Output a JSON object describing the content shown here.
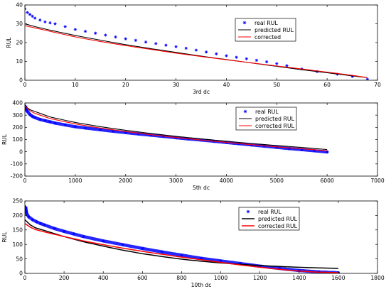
{
  "chart_data": [
    {
      "type": "scatter",
      "xlabel": "3rd dc",
      "ylabel": "RUL",
      "xlim": [
        0,
        70
      ],
      "ylim": [
        0,
        40
      ],
      "xticks": [
        0,
        10,
        20,
        30,
        40,
        50,
        60,
        70
      ],
      "yticks": [
        0,
        10,
        20,
        30,
        40
      ],
      "legend_position": "top-right",
      "series": [
        {
          "name": "real RUL",
          "style": "marker-star",
          "color": "#0000ff",
          "x": [
            0,
            0.5,
            1,
            1.5,
            2,
            3,
            4,
            5,
            6,
            8,
            10,
            12,
            14,
            16,
            18,
            20,
            22,
            24,
            26,
            28,
            30,
            32,
            34,
            36,
            38,
            40,
            42,
            44,
            46,
            48,
            50,
            52,
            55,
            58,
            62,
            65,
            68
          ],
          "y": [
            38,
            36,
            35,
            34,
            33,
            32,
            31,
            30.5,
            30,
            28.5,
            27,
            26,
            25,
            24,
            23,
            22,
            21.2,
            20.3,
            19.5,
            18.6,
            17.8,
            17,
            16,
            15,
            14,
            13,
            12.2,
            11.4,
            10.6,
            9.8,
            8.8,
            7.7,
            6,
            4.6,
            3.2,
            2,
            0.5
          ]
        },
        {
          "name": "predicted RUL",
          "style": "line",
          "color": "#000000",
          "x": [
            0,
            2,
            5,
            10,
            15,
            20,
            25,
            30,
            35,
            40,
            45,
            50,
            55,
            60,
            65,
            68
          ],
          "y": [
            30,
            28.5,
            26.6,
            23.8,
            21.3,
            18.9,
            16.8,
            14.8,
            12.8,
            11.0,
            9.2,
            7.4,
            5.6,
            4.0,
            2.3,
            1.4
          ]
        },
        {
          "name": "corrected",
          "style": "line",
          "color": "#ff0000",
          "x": [
            0,
            2,
            5,
            10,
            15,
            20,
            25,
            30,
            35,
            40,
            45,
            50,
            55,
            60,
            65,
            68
          ],
          "y": [
            29,
            27.8,
            26,
            23,
            20.6,
            18.4,
            16.4,
            14.4,
            12.6,
            10.9,
            9.2,
            7.6,
            6,
            4.3,
            2.6,
            1.4
          ]
        }
      ]
    },
    {
      "type": "scatter",
      "xlabel": "5th dc",
      "ylabel": "RUL",
      "xlim": [
        0,
        7000
      ],
      "ylim": [
        -200,
        400
      ],
      "xticks": [
        0,
        1000,
        2000,
        3000,
        4000,
        5000,
        6000,
        7000
      ],
      "yticks": [
        -200,
        -100,
        0,
        100,
        200,
        300,
        400
      ],
      "legend_position": "top-right",
      "series": [
        {
          "name": "real RUL",
          "style": "dense-marker-star",
          "color": "#0000ff",
          "x": [
            0,
            10,
            25,
            50,
            100,
            150,
            200,
            300,
            400,
            500,
            600,
            800,
            1000,
            1200,
            1500,
            1750,
            2000,
            2250,
            2500,
            2750,
            3000,
            3250,
            3500,
            3750,
            4000,
            4250,
            4500,
            4750,
            5000,
            5250,
            5500,
            5750,
            6000
          ],
          "y": [
            375,
            360,
            345,
            330,
            305,
            290,
            280,
            265,
            255,
            245,
            235,
            220,
            205,
            195,
            180,
            168,
            157,
            146,
            136,
            126,
            115,
            105,
            96,
            86,
            76,
            66,
            56,
            46,
            36,
            26,
            17,
            8,
            -2
          ]
        },
        {
          "name": "predicted RUL",
          "style": "line",
          "color": "#000000",
          "x": [
            0,
            100,
            200,
            500,
            1000,
            1500,
            2000,
            2500,
            3000,
            3500,
            4000,
            4500,
            5000,
            5500,
            6000
          ],
          "y": [
            375,
            345,
            330,
            285,
            240,
            205,
            176,
            150,
            126,
            105,
            86,
            67,
            51,
            35,
            18
          ]
        },
        {
          "name": "corrected RUL",
          "style": "line",
          "color": "#ff0000",
          "x": [
            0,
            100,
            200,
            500,
            1000,
            1500,
            2000,
            2500,
            3000,
            3500,
            4000,
            4500,
            5000,
            5500,
            6000
          ],
          "y": [
            375,
            335,
            315,
            272,
            228,
            194,
            166,
            140,
            117,
            96,
            77,
            58,
            40,
            24,
            8
          ]
        }
      ]
    },
    {
      "type": "scatter",
      "xlabel": "10th dc",
      "ylabel": "RUL",
      "xlim": [
        0,
        1800
      ],
      "ylim": [
        0,
        250
      ],
      "xticks": [
        0,
        200,
        400,
        600,
        800,
        1000,
        1200,
        1400,
        1600,
        1800
      ],
      "yticks": [
        0,
        50,
        100,
        150,
        200,
        250
      ],
      "legend_position": "top-right",
      "series": [
        {
          "name": "real RUL",
          "style": "dense-marker-star",
          "color": "#0000ff",
          "x": [
            0,
            5,
            10,
            20,
            40,
            60,
            80,
            100,
            150,
            200,
            250,
            300,
            400,
            500,
            600,
            700,
            800,
            900,
            1000,
            1100,
            1200,
            1300,
            1400,
            1500,
            1600
          ],
          "y": [
            230,
            215,
            205,
            195,
            185,
            178,
            172,
            167,
            155,
            145,
            136,
            127,
            112,
            99,
            86,
            74,
            63,
            52,
            43,
            34,
            25,
            17,
            10,
            5,
            2
          ]
        },
        {
          "name": "predicted RUL",
          "style": "line",
          "color": "#000000",
          "x": [
            0,
            10,
            50,
            100,
            200,
            300,
            400,
            500,
            600,
            700,
            800,
            900,
            1000,
            1100,
            1200,
            1300,
            1400,
            1500,
            1600
          ],
          "y": [
            185,
            175,
            158,
            148,
            127,
            109,
            94,
            80,
            68,
            58,
            49,
            42,
            36,
            31,
            27,
            24,
            21,
            19,
            17
          ]
        },
        {
          "name": "corrected RUL",
          "style": "line",
          "color": "#ff0000",
          "x": [
            0,
            10,
            50,
            100,
            200,
            300,
            400,
            500,
            600,
            700,
            800,
            900,
            1000,
            1100,
            1200,
            1300,
            1400,
            1500,
            1600
          ],
          "y": [
            172,
            165,
            152,
            143,
            127,
            112,
            99,
            87,
            76,
            66,
            56,
            47,
            38,
            29,
            21,
            14,
            8,
            4,
            3
          ]
        }
      ]
    }
  ]
}
